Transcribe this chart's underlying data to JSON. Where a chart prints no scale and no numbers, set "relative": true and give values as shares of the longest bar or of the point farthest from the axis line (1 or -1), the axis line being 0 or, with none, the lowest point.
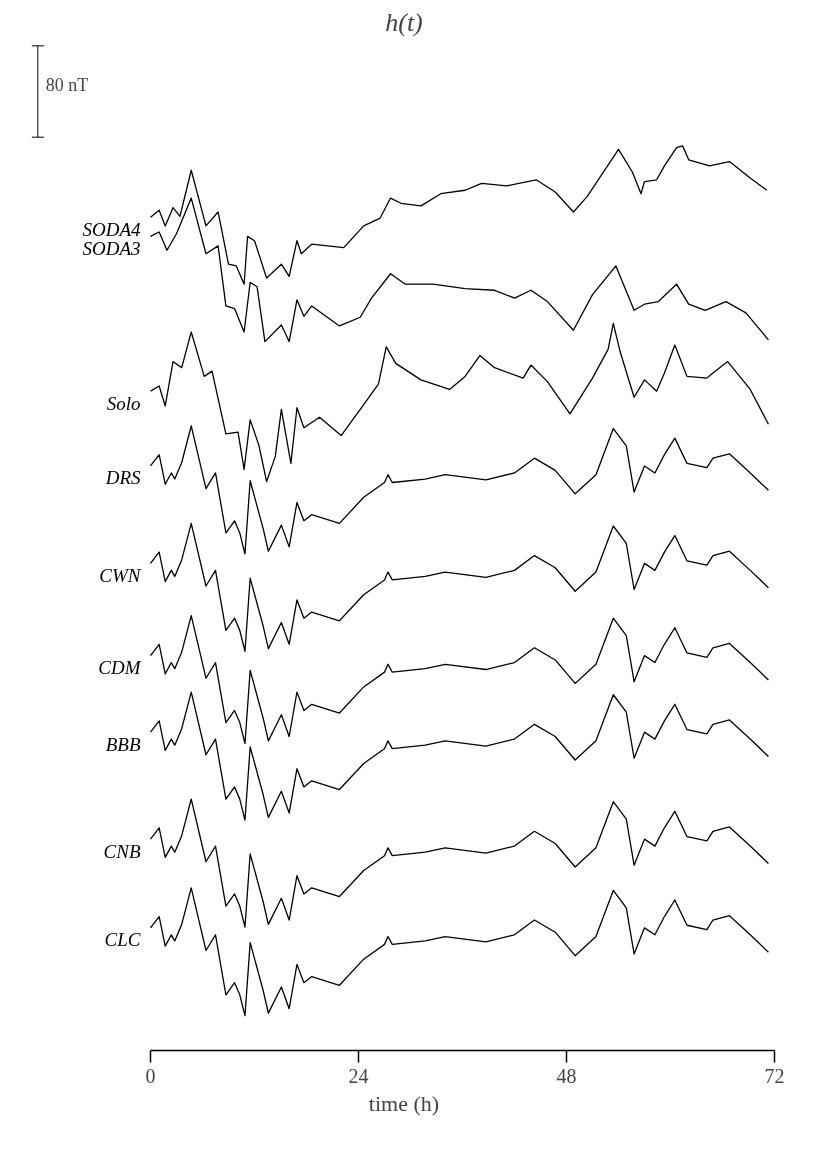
{
  "chart_data": {
    "type": "line",
    "title": "h(t)",
    "xlabel": "time (h)",
    "relative": true,
    "annotations": [
      "80 nT"
    ],
    "xlim": [
      0,
      72
    ],
    "xticks": [
      0,
      24,
      48,
      72
    ],
    "series": [
      {
        "name": "SODA4",
        "color": "#000000",
        "x": [
          0,
          1.0,
          1.7,
          2.6,
          3.4,
          4.7,
          6.4,
          7.8,
          9.0,
          9.9,
          10.8,
          11.2,
          12.0,
          13.4,
          15.1,
          16.0,
          16.9,
          17.4,
          18.6,
          22.3,
          24.6,
          26.5,
          27.7,
          28.9,
          31.2,
          33.5,
          36.3,
          38.2,
          41.1,
          44.5,
          46.7,
          48.8,
          50.4,
          54.0,
          55.6,
          56.6,
          57.0,
          58.4,
          59.3,
          60.7,
          61.4,
          62.1,
          64.5,
          66.8,
          69.2,
          71.1
        ],
        "values": [
          0.918,
          0.926,
          0.908,
          0.929,
          0.919,
          0.972,
          0.908,
          0.924,
          0.864,
          0.862,
          0.841,
          0.896,
          0.891,
          0.848,
          0.864,
          0.85,
          0.891,
          0.876,
          0.887,
          0.883,
          0.908,
          0.917,
          0.94,
          0.934,
          0.931,
          0.945,
          0.949,
          0.957,
          0.954,
          0.961,
          0.947,
          0.924,
          0.942,
          0.996,
          0.97,
          0.945,
          0.959,
          0.961,
          0.977,
          0.998,
          1,
          0.984,
          0.977,
          0.982,
          0.963,
          0.949
        ]
      },
      {
        "name": "SODA3",
        "color": "#000000",
        "x": [
          0,
          1.0,
          1.9,
          3.0,
          4.7,
          6.4,
          7.8,
          8.7,
          9.7,
          10.8,
          11.5,
          12.3,
          13.2,
          15.1,
          16.0,
          16.9,
          17.7,
          18.6,
          21.8,
          24.2,
          25.5,
          27.7,
          29.4,
          32.6,
          36.3,
          39.7,
          42.0,
          43.9,
          45.8,
          48.8,
          51.0,
          53.7,
          55.8,
          57.0,
          58.6,
          60.7,
          62.1,
          64.0,
          66.4,
          68.7,
          71.3
        ],
        "values": [
          0.896,
          0.901,
          0.88,
          0.899,
          0.94,
          0.876,
          0.885,
          0.816,
          0.813,
          0.786,
          0.843,
          0.838,
          0.775,
          0.794,
          0.775,
          0.823,
          0.804,
          0.816,
          0.793,
          0.803,
          0.825,
          0.853,
          0.841,
          0.841,
          0.836,
          0.834,
          0.825,
          0.834,
          0.821,
          0.788,
          0.829,
          0.862,
          0.811,
          0.818,
          0.821,
          0.841,
          0.818,
          0.811,
          0.821,
          0.808,
          0.777
        ]
      },
      {
        "name": "Solo",
        "color": "#000000",
        "x": [
          0,
          1.0,
          1.7,
          2.6,
          3.6,
          4.7,
          6.2,
          7.1,
          8.7,
          10.1,
          10.8,
          11.5,
          12.5,
          13.4,
          14.4,
          15.1,
          16.2,
          16.9,
          17.7,
          19.5,
          22.0,
          24.2,
          26.3,
          27.2,
          28.3,
          31.2,
          34.5,
          36.3,
          38.0,
          39.7,
          43.0,
          43.9,
          45.8,
          48.4,
          51.0,
          52.8,
          53.4,
          54.2,
          55.8,
          57.0,
          58.4,
          59.3,
          60.5,
          61.9,
          64.2,
          64.9,
          66.6,
          69.2,
          71.3
        ],
        "values": [
          0.718,
          0.724,
          0.701,
          0.752,
          0.745,
          0.786,
          0.735,
          0.741,
          0.669,
          0.671,
          0.628,
          0.685,
          0.656,
          0.614,
          0.643,
          0.697,
          0.635,
          0.699,
          0.676,
          0.688,
          0.667,
          0.697,
          0.726,
          0.769,
          0.75,
          0.731,
          0.72,
          0.735,
          0.759,
          0.745,
          0.733,
          0.748,
          0.729,
          0.692,
          0.733,
          0.766,
          0.796,
          0.763,
          0.711,
          0.731,
          0.718,
          0.739,
          0.771,
          0.735,
          0.733,
          0.739,
          0.752,
          0.72,
          0.68
        ]
      },
      {
        "name": "DRS",
        "color": "#000000",
        "x": [
          0,
          1.0,
          1.7,
          2.4,
          2.8,
          3.6,
          4.7,
          6.4,
          7.5,
          8.7,
          9.7,
          10.3,
          10.9,
          11.5,
          13.0,
          13.6,
          15.1,
          16.0,
          16.9,
          17.7,
          18.6,
          21.8,
          24.6,
          27.0,
          27.4,
          27.9,
          31.7,
          34.0,
          38.7,
          42.0,
          44.3,
          46.7,
          49.0,
          51.4,
          53.4,
          54.9,
          55.8,
          57.0,
          58.2,
          59.3,
          60.5,
          61.9,
          64.2,
          64.9,
          66.8,
          69.2,
          71.3
        ],
        "values": [
          0.632,
          0.645,
          0.611,
          0.624,
          0.617,
          0.636,
          0.678,
          0.606,
          0.624,
          0.555,
          0.569,
          0.555,
          0.531,
          0.615,
          0.56,
          0.534,
          0.564,
          0.539,
          0.59,
          0.569,
          0.576,
          0.566,
          0.596,
          0.613,
          0.622,
          0.613,
          0.617,
          0.622,
          0.616,
          0.624,
          0.641,
          0.627,
          0.6,
          0.622,
          0.675,
          0.655,
          0.602,
          0.632,
          0.624,
          0.645,
          0.664,
          0.635,
          0.63,
          0.641,
          0.646,
          0.624,
          0.604
        ]
      },
      {
        "name": "CWN",
        "color": "#000000",
        "x": [
          0,
          1.0,
          1.7,
          2.4,
          2.8,
          3.6,
          4.7,
          6.4,
          7.5,
          8.7,
          9.7,
          10.3,
          10.9,
          11.5,
          13.0,
          13.6,
          15.1,
          16.0,
          16.9,
          17.7,
          18.6,
          21.8,
          24.6,
          27.0,
          27.4,
          27.9,
          31.7,
          34.0,
          38.7,
          42.0,
          44.3,
          46.7,
          49.0,
          51.4,
          53.4,
          54.9,
          55.8,
          57.0,
          58.2,
          59.3,
          60.5,
          61.9,
          64.2,
          64.9,
          66.8,
          69.2,
          71.3
        ],
        "values": [
          0.52,
          0.533,
          0.499,
          0.512,
          0.505,
          0.524,
          0.566,
          0.494,
          0.512,
          0.443,
          0.457,
          0.443,
          0.419,
          0.503,
          0.448,
          0.422,
          0.452,
          0.427,
          0.478,
          0.457,
          0.464,
          0.454,
          0.484,
          0.501,
          0.51,
          0.501,
          0.505,
          0.51,
          0.504,
          0.512,
          0.529,
          0.515,
          0.488,
          0.51,
          0.563,
          0.543,
          0.49,
          0.52,
          0.512,
          0.533,
          0.552,
          0.523,
          0.518,
          0.529,
          0.534,
          0.512,
          0.492
        ]
      },
      {
        "name": "CDM",
        "color": "#000000",
        "x": [
          0,
          1.0,
          1.7,
          2.4,
          2.8,
          3.6,
          4.7,
          6.4,
          7.5,
          8.7,
          9.7,
          10.3,
          10.9,
          11.5,
          13.0,
          13.6,
          15.1,
          16.0,
          16.9,
          17.7,
          18.6,
          21.8,
          24.6,
          27.0,
          27.4,
          27.9,
          31.7,
          34.0,
          38.7,
          42.0,
          44.3,
          46.7,
          49.0,
          51.4,
          53.4,
          54.9,
          55.8,
          57.0,
          58.2,
          59.3,
          60.5,
          61.9,
          64.2,
          64.9,
          66.8,
          69.2,
          71.3
        ],
        "values": [
          0.414,
          0.427,
          0.393,
          0.406,
          0.399,
          0.418,
          0.46,
          0.388,
          0.406,
          0.337,
          0.351,
          0.337,
          0.313,
          0.397,
          0.342,
          0.316,
          0.346,
          0.321,
          0.372,
          0.351,
          0.358,
          0.348,
          0.378,
          0.395,
          0.404,
          0.395,
          0.399,
          0.404,
          0.398,
          0.406,
          0.423,
          0.409,
          0.382,
          0.404,
          0.457,
          0.437,
          0.384,
          0.414,
          0.406,
          0.427,
          0.446,
          0.417,
          0.412,
          0.423,
          0.428,
          0.406,
          0.386
        ]
      },
      {
        "name": "BBB",
        "color": "#000000",
        "x": [
          0,
          1.0,
          1.7,
          2.4,
          2.8,
          3.6,
          4.7,
          6.4,
          7.5,
          8.7,
          9.7,
          10.3,
          10.9,
          11.5,
          13.0,
          13.6,
          15.1,
          16.0,
          16.9,
          17.7,
          18.6,
          21.8,
          24.6,
          27.0,
          27.4,
          27.9,
          31.7,
          34.0,
          38.7,
          42.0,
          44.3,
          46.7,
          49.0,
          51.4,
          53.4,
          54.9,
          55.8,
          57.0,
          58.2,
          59.3,
          60.5,
          61.9,
          64.2,
          64.9,
          66.8,
          69.2,
          71.3
        ],
        "values": [
          0.326,
          0.339,
          0.305,
          0.318,
          0.311,
          0.33,
          0.372,
          0.3,
          0.318,
          0.249,
          0.263,
          0.249,
          0.225,
          0.309,
          0.254,
          0.228,
          0.258,
          0.233,
          0.284,
          0.263,
          0.27,
          0.26,
          0.29,
          0.307,
          0.316,
          0.307,
          0.311,
          0.316,
          0.31,
          0.318,
          0.335,
          0.321,
          0.294,
          0.316,
          0.369,
          0.349,
          0.296,
          0.326,
          0.318,
          0.339,
          0.358,
          0.329,
          0.324,
          0.335,
          0.34,
          0.318,
          0.298
        ]
      },
      {
        "name": "CNB",
        "color": "#000000",
        "x": [
          0,
          1.0,
          1.7,
          2.4,
          2.8,
          3.6,
          4.7,
          6.4,
          7.5,
          8.7,
          9.7,
          10.3,
          10.9,
          11.5,
          13.0,
          13.6,
          15.1,
          16.0,
          16.9,
          17.7,
          18.6,
          21.8,
          24.6,
          27.0,
          27.4,
          27.9,
          31.7,
          34.0,
          38.7,
          42.0,
          44.3,
          46.7,
          49.0,
          51.4,
          53.4,
          54.9,
          55.8,
          57.0,
          58.2,
          59.3,
          60.5,
          61.9,
          64.2,
          64.9,
          66.8,
          69.2,
          71.3
        ],
        "values": [
          0.203,
          0.216,
          0.182,
          0.195,
          0.188,
          0.207,
          0.249,
          0.177,
          0.195,
          0.126,
          0.14,
          0.126,
          0.102,
          0.186,
          0.131,
          0.105,
          0.135,
          0.11,
          0.161,
          0.14,
          0.147,
          0.137,
          0.167,
          0.184,
          0.193,
          0.184,
          0.188,
          0.193,
          0.187,
          0.195,
          0.212,
          0.198,
          0.171,
          0.193,
          0.246,
          0.226,
          0.173,
          0.203,
          0.195,
          0.216,
          0.235,
          0.206,
          0.201,
          0.212,
          0.217,
          0.195,
          0.175
        ]
      },
      {
        "name": "CLC",
        "color": "#000000",
        "x": [
          0,
          1.0,
          1.7,
          2.4,
          2.8,
          3.6,
          4.7,
          6.4,
          7.5,
          8.7,
          9.7,
          10.3,
          10.9,
          11.5,
          13.0,
          13.6,
          15.1,
          16.0,
          16.9,
          17.7,
          18.6,
          21.8,
          24.6,
          27.0,
          27.4,
          27.9,
          31.7,
          34.0,
          38.7,
          42.0,
          44.3,
          46.7,
          49.0,
          51.4,
          53.4,
          54.9,
          55.8,
          57.0,
          58.2,
          59.3,
          60.5,
          61.9,
          64.2,
          64.9,
          66.8,
          69.2,
          71.3
        ],
        "values": [
          0.101,
          0.114,
          0.08,
          0.093,
          0.086,
          0.105,
          0.147,
          0.075,
          0.093,
          0.024,
          0.038,
          0.024,
          0,
          0.084,
          0.029,
          0.003,
          0.033,
          0.008,
          0.059,
          0.038,
          0.045,
          0.035,
          0.065,
          0.082,
          0.091,
          0.082,
          0.086,
          0.091,
          0.085,
          0.093,
          0.11,
          0.096,
          0.069,
          0.091,
          0.144,
          0.124,
          0.071,
          0.101,
          0.093,
          0.114,
          0.133,
          0.104,
          0.099,
          0.11,
          0.115,
          0.093,
          0.073
        ]
      }
    ]
  }
}
